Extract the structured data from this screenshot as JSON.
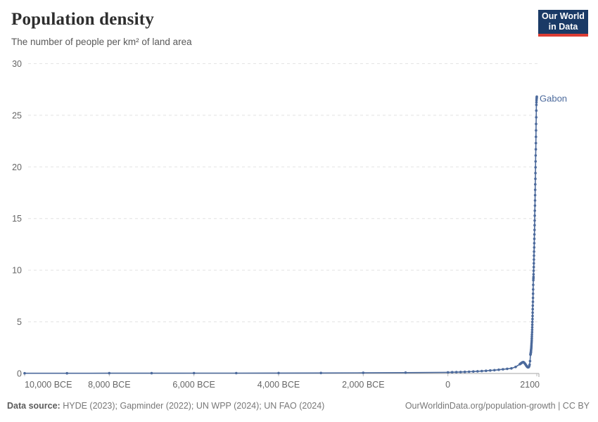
{
  "header": {
    "title": "Population density",
    "subtitle": "The number of people per km² of land area"
  },
  "logo": {
    "line1": "Our World",
    "line2": "in Data",
    "bg_color": "#1a3a66",
    "accent_color": "#dc3d34"
  },
  "chart_data": {
    "type": "line",
    "title": "Population density",
    "subtitle": "The number of people per km² of land area",
    "grid": true,
    "legend_position": "end-of-line-label",
    "x_axis": {
      "range": [
        -10000,
        2100
      ],
      "ticks": [
        {
          "value": -10000,
          "label": "10,000 BCE"
        },
        {
          "value": -8000,
          "label": "8,000 BCE"
        },
        {
          "value": -6000,
          "label": "6,000 BCE"
        },
        {
          "value": -4000,
          "label": "4,000 BCE"
        },
        {
          "value": -2000,
          "label": "2,000 BCE"
        },
        {
          "value": 0,
          "label": "0"
        },
        {
          "value": 2100,
          "label": "2100"
        }
      ]
    },
    "y_axis": {
      "range": [
        0,
        30
      ],
      "ticks": [
        0,
        5,
        10,
        15,
        20,
        25,
        30
      ]
    },
    "series": [
      {
        "name": "Gabon",
        "color": "#4c6a9c",
        "points": [
          [
            -10000,
            0.02
          ],
          [
            -9000,
            0.022
          ],
          [
            -8000,
            0.025
          ],
          [
            -7000,
            0.028
          ],
          [
            -6000,
            0.032
          ],
          [
            -5000,
            0.037
          ],
          [
            -4000,
            0.043
          ],
          [
            -3000,
            0.05
          ],
          [
            -2000,
            0.06
          ],
          [
            -1000,
            0.08
          ],
          [
            0,
            0.11
          ],
          [
            100,
            0.12
          ],
          [
            200,
            0.13
          ],
          [
            300,
            0.14
          ],
          [
            400,
            0.16
          ],
          [
            500,
            0.17
          ],
          [
            600,
            0.19
          ],
          [
            700,
            0.21
          ],
          [
            800,
            0.23
          ],
          [
            900,
            0.26
          ],
          [
            1000,
            0.29
          ],
          [
            1100,
            0.32
          ],
          [
            1200,
            0.36
          ],
          [
            1300,
            0.4
          ],
          [
            1400,
            0.45
          ],
          [
            1500,
            0.5
          ],
          [
            1600,
            0.63
          ],
          [
            1700,
            0.9
          ],
          [
            1710,
            0.93
          ],
          [
            1720,
            0.96
          ],
          [
            1730,
            0.99
          ],
          [
            1740,
            1.02
          ],
          [
            1750,
            1.05
          ],
          [
            1760,
            1.07
          ],
          [
            1770,
            1.09
          ],
          [
            1780,
            1.1
          ],
          [
            1790,
            1.08
          ],
          [
            1800,
            1.05
          ],
          [
            1810,
            1.0
          ],
          [
            1820,
            0.95
          ],
          [
            1830,
            0.89
          ],
          [
            1840,
            0.83
          ],
          [
            1850,
            0.77
          ],
          [
            1860,
            0.71
          ],
          [
            1870,
            0.66
          ],
          [
            1880,
            0.62
          ],
          [
            1890,
            0.6
          ],
          [
            1900,
            0.6
          ],
          [
            1910,
            0.63
          ],
          [
            1920,
            0.7
          ],
          [
            1930,
            0.85
          ],
          [
            1940,
            1.2
          ],
          [
            1950,
            1.82
          ],
          [
            1952,
            1.86
          ],
          [
            1954,
            1.9
          ],
          [
            1956,
            1.95
          ],
          [
            1958,
            2.0
          ],
          [
            1960,
            2.06
          ],
          [
            1962,
            2.13
          ],
          [
            1964,
            2.21
          ],
          [
            1966,
            2.3
          ],
          [
            1968,
            2.4
          ],
          [
            1970,
            2.51
          ],
          [
            1972,
            2.63
          ],
          [
            1974,
            2.76
          ],
          [
            1976,
            2.9
          ],
          [
            1978,
            3.05
          ],
          [
            1980,
            3.21
          ],
          [
            1982,
            3.39
          ],
          [
            1984,
            3.58
          ],
          [
            1986,
            3.78
          ],
          [
            1988,
            4.0
          ],
          [
            1990,
            4.23
          ],
          [
            1992,
            4.47
          ],
          [
            1994,
            4.72
          ],
          [
            1996,
            4.99
          ],
          [
            1998,
            5.27
          ],
          [
            2000,
            5.57
          ],
          [
            2002,
            5.89
          ],
          [
            2004,
            6.22
          ],
          [
            2006,
            6.57
          ],
          [
            2008,
            6.94
          ],
          [
            2010,
            7.32
          ],
          [
            2012,
            7.72
          ],
          [
            2014,
            8.14
          ],
          [
            2016,
            8.58
          ],
          [
            2018,
            9.03
          ],
          [
            2020,
            9.2
          ],
          [
            2022,
            9.35
          ],
          [
            2024,
            9.6
          ],
          [
            2026,
            9.95
          ],
          [
            2028,
            10.3
          ],
          [
            2030,
            10.66
          ],
          [
            2032,
            11.03
          ],
          [
            2034,
            11.41
          ],
          [
            2036,
            11.8
          ],
          [
            2038,
            12.2
          ],
          [
            2040,
            12.61
          ],
          [
            2042,
            13.03
          ],
          [
            2044,
            13.46
          ],
          [
            2046,
            13.9
          ],
          [
            2048,
            14.35
          ],
          [
            2050,
            14.81
          ],
          [
            2052,
            15.28
          ],
          [
            2054,
            15.76
          ],
          [
            2056,
            16.25
          ],
          [
            2058,
            16.75
          ],
          [
            2060,
            17.26
          ],
          [
            2062,
            17.78
          ],
          [
            2064,
            18.31
          ],
          [
            2066,
            18.85
          ],
          [
            2068,
            19.4
          ],
          [
            2070,
            19.96
          ],
          [
            2072,
            20.53
          ],
          [
            2074,
            21.11
          ],
          [
            2076,
            21.7
          ],
          [
            2078,
            22.3
          ],
          [
            2080,
            22.91
          ],
          [
            2082,
            23.53
          ],
          [
            2084,
            24.16
          ],
          [
            2086,
            24.8
          ],
          [
            2088,
            25.45
          ],
          [
            2090,
            26.0
          ],
          [
            2092,
            26.25
          ],
          [
            2094,
            26.45
          ],
          [
            2096,
            26.6
          ],
          [
            2098,
            26.72
          ],
          [
            2100,
            26.8
          ]
        ]
      }
    ],
    "colors": {
      "gridline": "#e2e2e2",
      "axis_line": "#a5a5a5",
      "tick_text": "#666666"
    }
  },
  "footer": {
    "source_label": "Data source:",
    "source_text": " HYDE (2023); Gapminder (2022); UN WPP (2024); UN FAO (2024)",
    "link_text": "OurWorldinData.org/population-growth | CC BY"
  }
}
